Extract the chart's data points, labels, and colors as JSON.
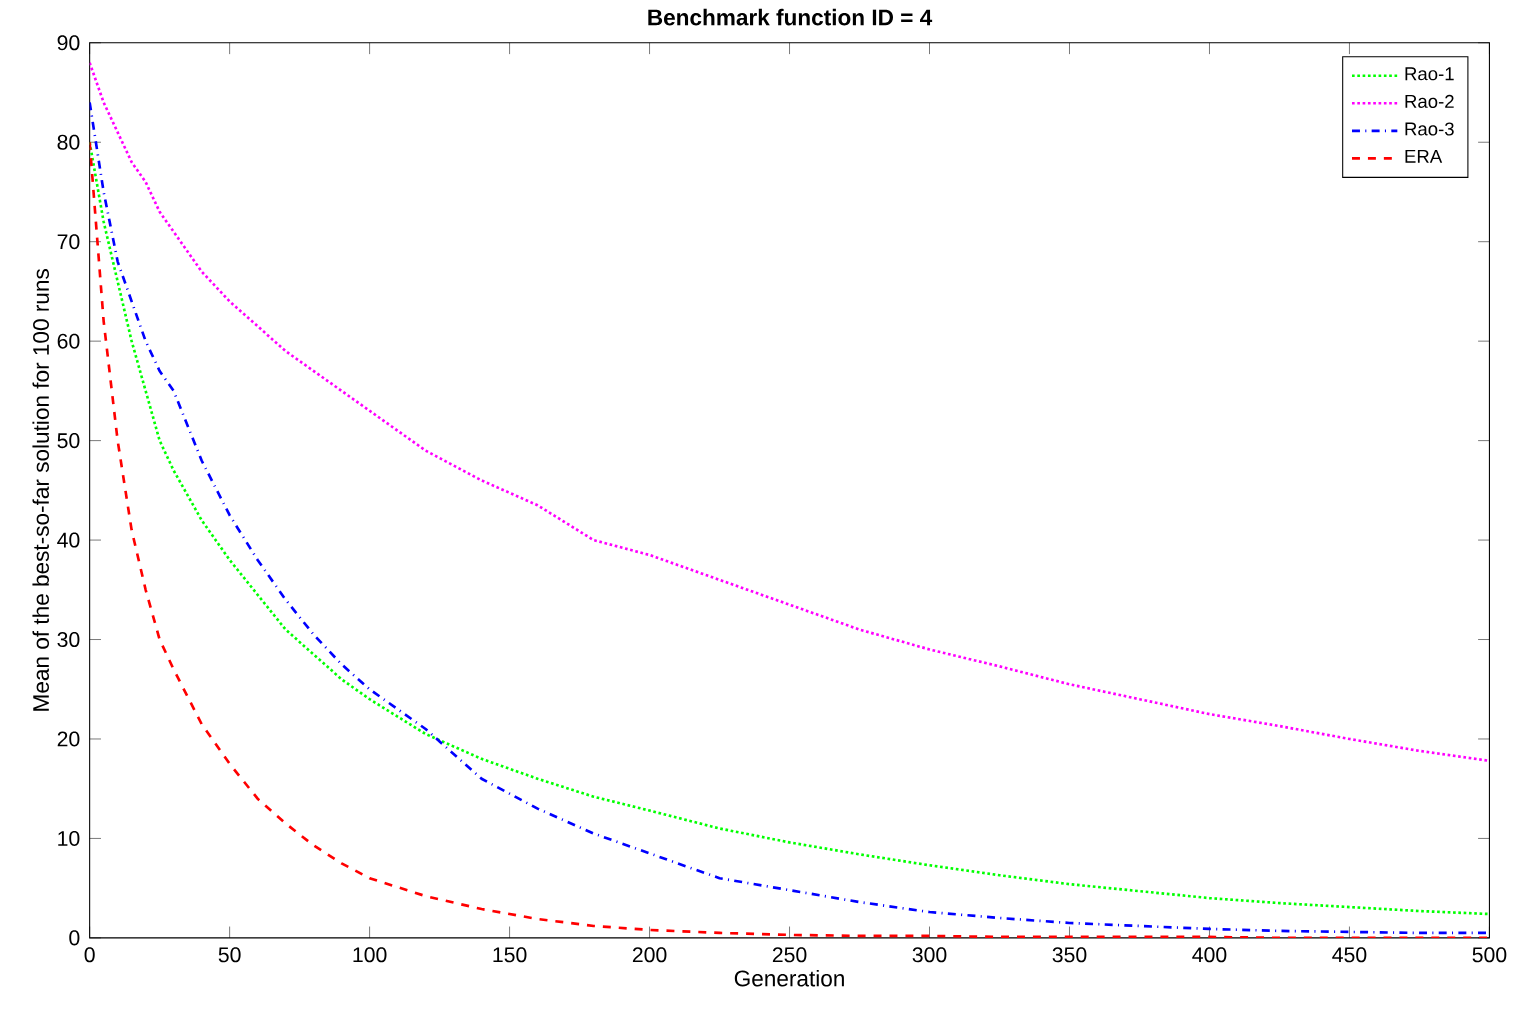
{
  "chart_data": {
    "type": "line",
    "title": "Benchmark function ID = 4",
    "xlabel": "Generation",
    "ylabel": "Mean of the best-so-far solution for 100 runs",
    "xlim": [
      0,
      500
    ],
    "ylim": [
      0,
      90
    ],
    "xticks": [
      0,
      50,
      100,
      150,
      200,
      250,
      300,
      350,
      400,
      450,
      500
    ],
    "yticks": [
      0,
      10,
      20,
      30,
      40,
      50,
      60,
      70,
      80,
      90
    ],
    "grid": false,
    "legend": "top right",
    "marker": "none",
    "x": [
      0,
      5,
      10,
      15,
      20,
      25,
      30,
      40,
      50,
      60,
      70,
      80,
      90,
      100,
      120,
      140,
      160,
      180,
      200,
      225,
      250,
      275,
      300,
      325,
      350,
      375,
      400,
      425,
      450,
      475,
      500
    ],
    "series": [
      {
        "name": "Rao-1",
        "color": "#00ff00",
        "line_style": "dotted",
        "values": [
          80,
          72,
          66,
          60,
          55,
          50,
          47,
          42,
          38,
          34.5,
          31,
          28.5,
          26,
          24,
          20.5,
          18,
          16,
          14.2,
          12.8,
          11,
          9.6,
          8.4,
          7.3,
          6.3,
          5.4,
          4.7,
          4.0,
          3.5,
          3.1,
          2.7,
          2.4
        ]
      },
      {
        "name": "Rao-2",
        "color": "#ff00ff",
        "line_style": "dotted",
        "values": [
          88,
          84,
          81,
          78,
          76,
          73,
          71,
          67,
          64,
          61.5,
          59,
          57,
          55,
          53,
          49,
          46,
          43.5,
          40,
          38.5,
          36,
          33.5,
          31,
          29,
          27.3,
          25.5,
          24,
          22.5,
          21.3,
          20,
          18.8,
          17.8
        ]
      },
      {
        "name": "Rao-3",
        "color": "#0000ff",
        "line_style": "dashdot",
        "values": [
          84,
          75,
          68,
          64,
          60,
          57,
          55,
          48,
          42.5,
          38,
          34,
          30.5,
          27.5,
          25,
          21,
          16,
          13,
          10.5,
          8.5,
          6,
          4.8,
          3.6,
          2.6,
          2,
          1.5,
          1.2,
          0.9,
          0.7,
          0.6,
          0.5,
          0.5
        ]
      },
      {
        "name": "ERA",
        "color": "#ff0000",
        "line_style": "dashed",
        "values": [
          80,
          62,
          50,
          41,
          35,
          30,
          27,
          21.5,
          17.5,
          14,
          11.5,
          9.3,
          7.5,
          6,
          4.2,
          2.9,
          1.9,
          1.2,
          0.8,
          0.5,
          0.3,
          0.2,
          0.2,
          0.1,
          0.1,
          0.1,
          0.1,
          0,
          0,
          0,
          0
        ]
      }
    ]
  }
}
